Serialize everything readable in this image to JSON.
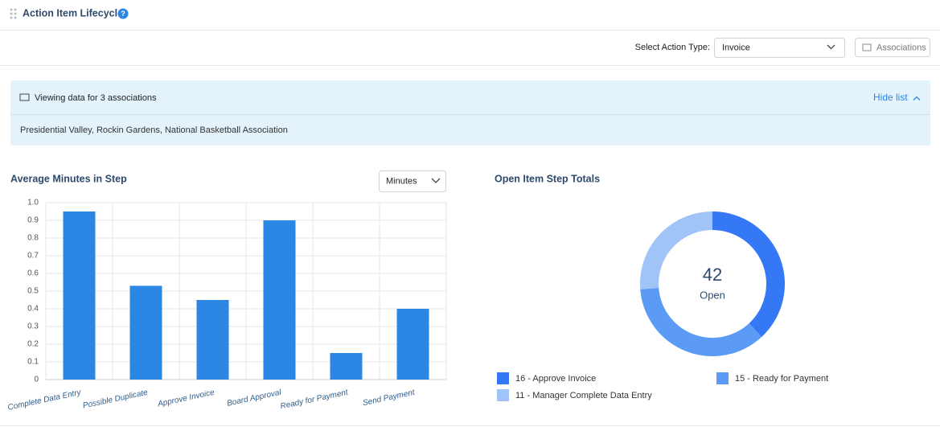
{
  "header": {
    "title": "Action Item Lifecycle"
  },
  "toolbar": {
    "action_type_label": "Select Action Type:",
    "action_type": "Invoice",
    "associations_button": "Associations"
  },
  "banner": {
    "title": "Viewing data for 3 associations",
    "toggle": "Hide list",
    "associations": "Presidential Valley, Rockin Gardens, National Basketball Association"
  },
  "chart_data": [
    {
      "type": "bar",
      "title": "Average Minutes in Step",
      "unit_selector": "Minutes",
      "categories": [
        "Complete Data Entry",
        "Possible Duplicate",
        "Approve Invoice",
        "Board Approval",
        "Ready for Payment",
        "Send Payment"
      ],
      "values": [
        0.95,
        0.53,
        0.45,
        0.9,
        0.15,
        0.4
      ],
      "color": "#2b87e3",
      "ylim": [
        0,
        1
      ],
      "yticks": [
        0,
        0.1,
        0.2,
        0.3,
        0.4,
        0.5,
        0.6,
        0.7,
        0.8,
        0.9,
        {
          "value": 1,
          "label": "1.0"
        }
      ],
      "grid": true
    },
    {
      "type": "pie",
      "title": "Open Item Step Totals",
      "categories": [
        "16 - Approve Invoice",
        "15 - Ready for Payment",
        "11 - Manager Complete Data Entry"
      ],
      "values": [
        16,
        15,
        11
      ],
      "colors": [
        "#3478f6",
        "#5b9af5",
        "#a0c4f8"
      ],
      "center_value": 42,
      "center_label": "Open"
    }
  ]
}
